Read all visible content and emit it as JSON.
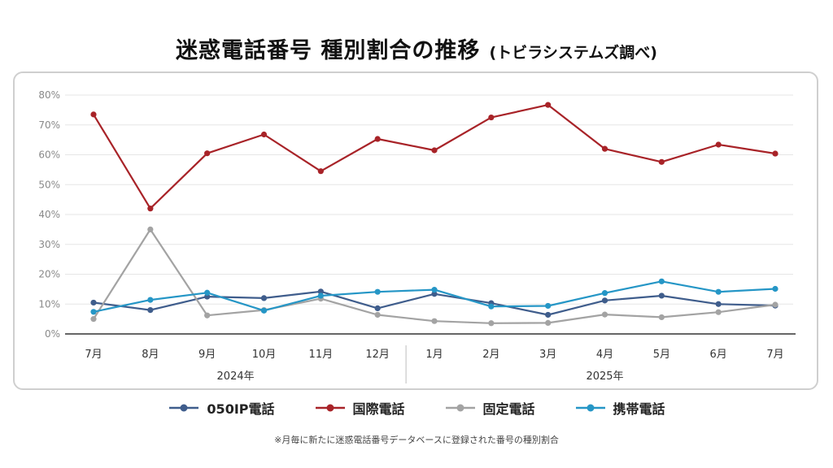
{
  "title": "迷惑電話番号 種別割合の推移",
  "subtitle": "(トビラシステムズ調べ)",
  "footnote": "※月毎に新たに迷惑電話番号データベースに登録された番号の種別割合",
  "chart_data": {
    "type": "line",
    "categories": [
      "7月",
      "8月",
      "9月",
      "10月",
      "11月",
      "12月",
      "1月",
      "2月",
      "3月",
      "4月",
      "5月",
      "6月",
      "7月"
    ],
    "year_groups": [
      {
        "label": "2024年",
        "span": [
          0,
          5
        ]
      },
      {
        "label": "2025年",
        "span": [
          6,
          12
        ]
      }
    ],
    "ylim": [
      0,
      80
    ],
    "yticks": [
      "0%",
      "10%",
      "20%",
      "30%",
      "40%",
      "50%",
      "60%",
      "70%",
      "80%"
    ],
    "grid": true,
    "legend_position": "bottom",
    "series": [
      {
        "name": "050IP電話",
        "color": "#3f5d8c",
        "values": [
          10.5,
          8.0,
          12.5,
          12.0,
          14.2,
          8.6,
          13.4,
          10.3,
          6.4,
          11.2,
          12.8,
          10.0,
          9.5
        ]
      },
      {
        "name": "国際電話",
        "color": "#a82328",
        "values": [
          73.5,
          42.0,
          60.5,
          66.8,
          54.5,
          65.3,
          61.5,
          72.5,
          76.7,
          62.0,
          57.6,
          63.4,
          60.4
        ]
      },
      {
        "name": "固定電話",
        "color": "#a3a3a3",
        "values": [
          5.0,
          35.0,
          6.2,
          8.0,
          11.8,
          6.4,
          4.3,
          3.6,
          3.7,
          6.5,
          5.6,
          7.3,
          9.8
        ]
      },
      {
        "name": "携帯電話",
        "color": "#2596c6",
        "values": [
          7.4,
          11.4,
          13.8,
          7.8,
          12.8,
          14.1,
          14.8,
          9.2,
          9.4,
          13.7,
          17.6,
          14.1,
          15.1
        ]
      }
    ]
  }
}
